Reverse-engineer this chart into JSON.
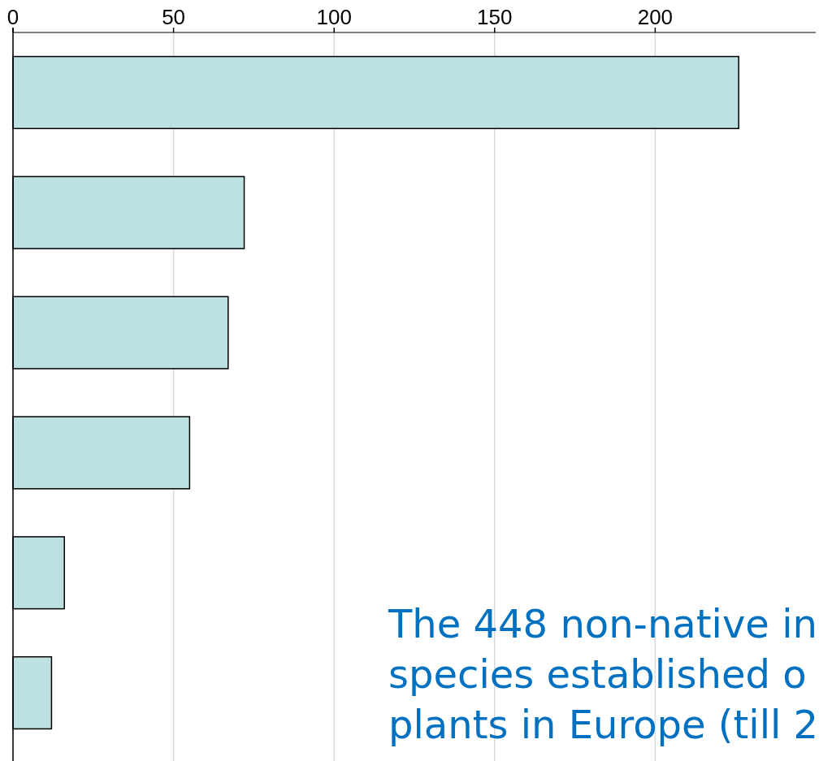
{
  "chart_data": {
    "type": "bar",
    "orientation": "horizontal",
    "categories": [
      null,
      null,
      null,
      null,
      null,
      null
    ],
    "values": [
      226,
      72,
      67,
      55,
      16,
      12
    ],
    "color": "#bde0e3",
    "xlim": [
      0,
      250
    ],
    "xticks": [
      0,
      50,
      100,
      150,
      200
    ],
    "grid": "x",
    "annotations": [
      "The 448 non-native in\nspecies established o\nplants in Europe (till 2"
    ]
  }
}
